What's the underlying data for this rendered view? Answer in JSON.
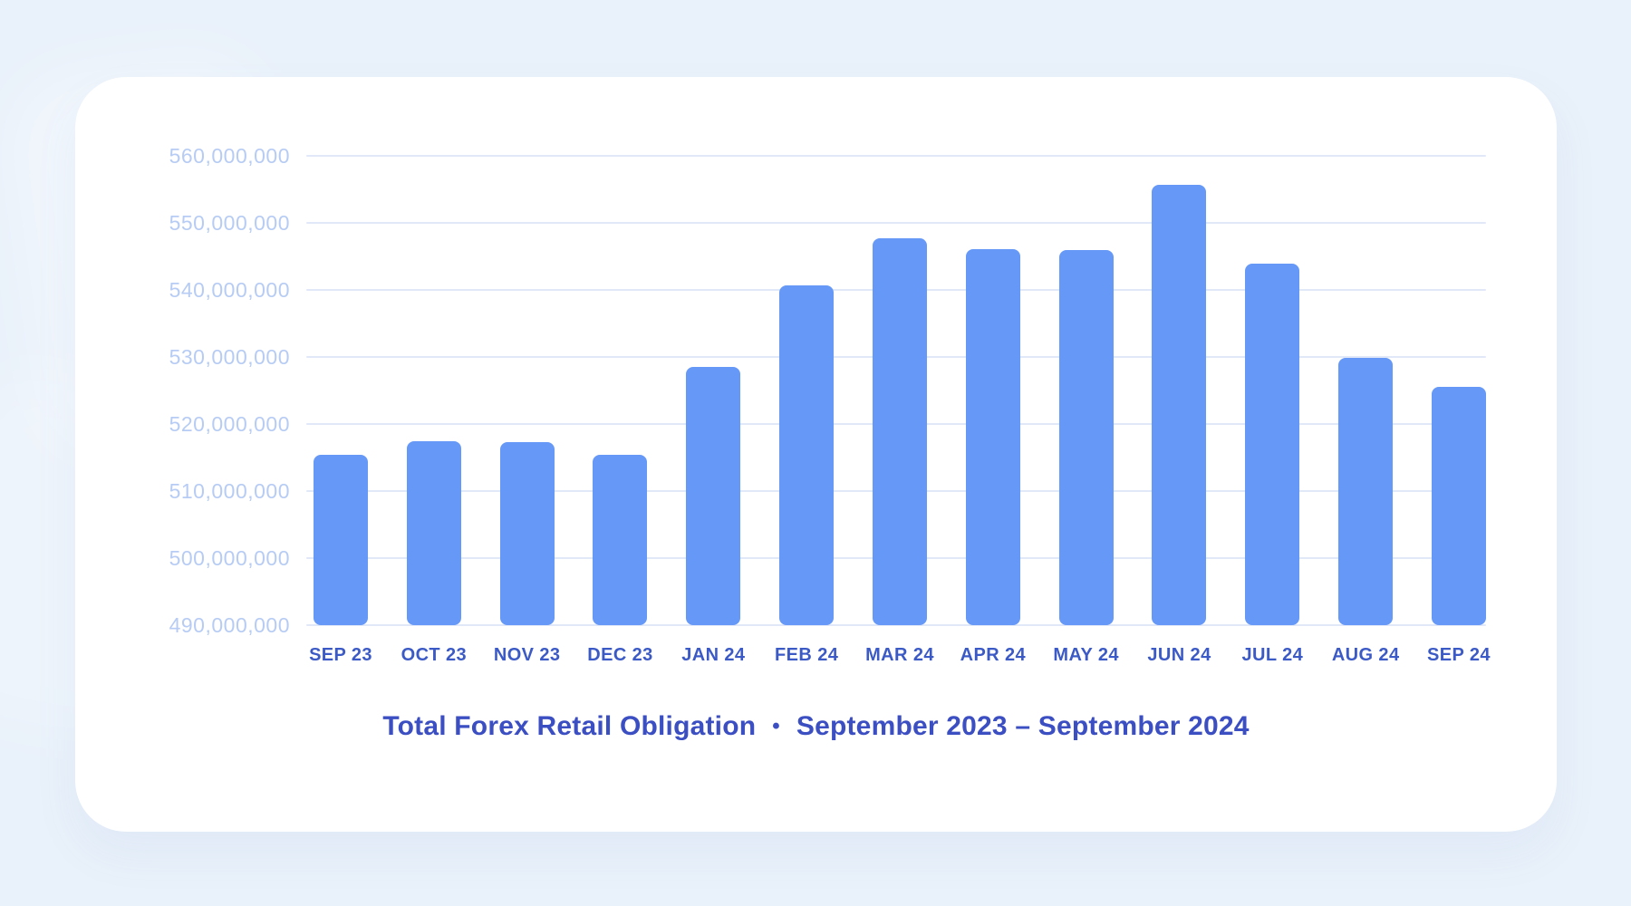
{
  "page": {
    "background": "#e9f1fa"
  },
  "card": {
    "background": "#ffffff"
  },
  "chart_data": {
    "type": "bar",
    "title": "Total Forex Retail Obligation",
    "separator": "•",
    "period": "September 2023 – September 2024",
    "categories": [
      "SEP 23",
      "OCT 23",
      "NOV 23",
      "DEC 23",
      "JAN 24",
      "FEB 24",
      "MAR 24",
      "APR 24",
      "MAY 24",
      "JUN 24",
      "JUL 24",
      "AUG 24",
      "SEP 24"
    ],
    "values": [
      515400000,
      517500000,
      517300000,
      515400000,
      528500000,
      540700000,
      547700000,
      546100000,
      545900000,
      555700000,
      543900000,
      529900000,
      525600000
    ],
    "ylim": [
      490000000,
      560000000
    ],
    "ytick_step": 10000000,
    "ytick_labels": [
      "490,000,000",
      "500,000,000",
      "510,000,000",
      "520,000,000",
      "530,000,000",
      "540,000,000",
      "550,000,000",
      "560,000,000"
    ],
    "grid": true,
    "legend_position": "none",
    "colors": {
      "bar": "#6598f7",
      "gridline": "#e1e8f8",
      "ytick_label": "#b7ccf4",
      "xtick_label": "#3c5ac5",
      "title": "#3b4ec2"
    }
  }
}
